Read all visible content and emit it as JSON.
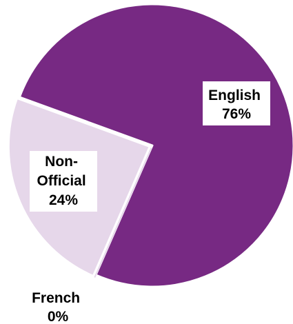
{
  "chart_data": {
    "type": "pie",
    "title": "",
    "slices": [
      {
        "label": "English",
        "value": 76,
        "value_label": "76%",
        "color": "#772983",
        "exploded": false
      },
      {
        "label": "French",
        "value": 0,
        "value_label": "0%",
        "color": "#e6d7ea",
        "exploded": true
      },
      {
        "label": "Non-Official",
        "value": 24,
        "value_label": "24%",
        "color": "#e6d7ea",
        "exploded": true
      }
    ],
    "label_style": "inside-box",
    "slice_border_color": "#ffffff"
  }
}
